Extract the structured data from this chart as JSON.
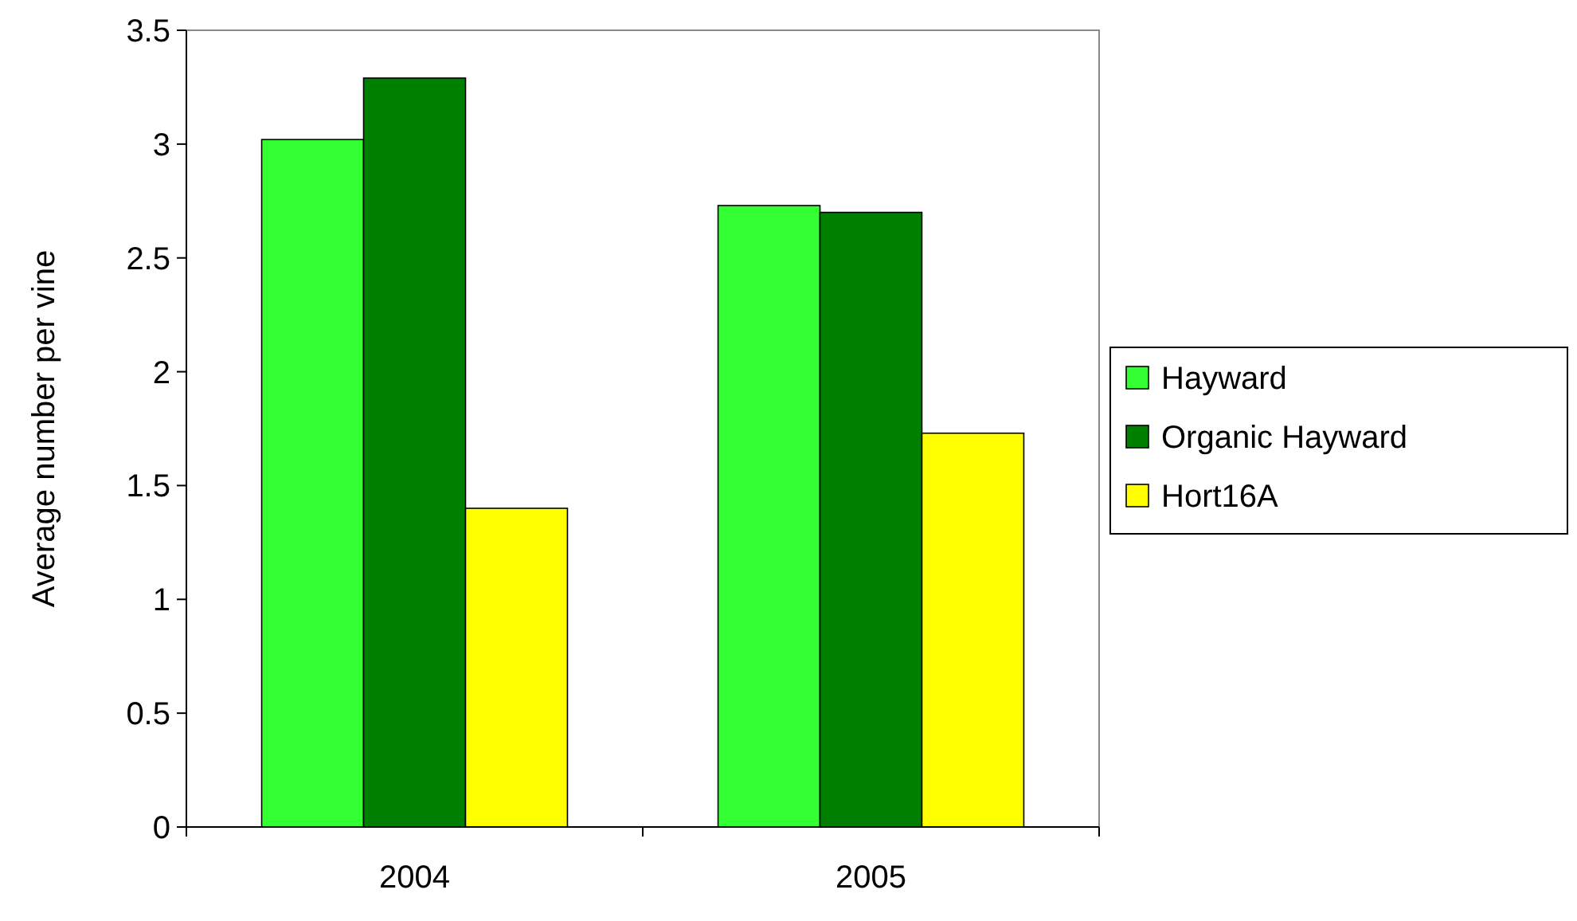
{
  "chart_data": {
    "type": "bar",
    "ylabel": "Average number per vine",
    "categories": [
      "2004",
      "2005"
    ],
    "series": [
      {
        "name": "Hayward",
        "color": "#33ff33",
        "values": [
          3.02,
          2.73
        ]
      },
      {
        "name": "Organic Hayward",
        "color": "#008000",
        "values": [
          3.29,
          2.7
        ]
      },
      {
        "name": "Hort16A",
        "color": "#ffff00",
        "values": [
          1.4,
          1.73
        ]
      }
    ],
    "ylim": [
      0,
      3.5
    ],
    "yticks": [
      0,
      {
        "value": 0.5,
        "label": "0.5"
      },
      1,
      {
        "value": 1.5,
        "label": "1.5"
      },
      2,
      {
        "value": 2.5,
        "label": "2.5"
      },
      3,
      {
        "value": 3.5,
        "label": "3.5"
      }
    ],
    "grid": false,
    "legend": "right"
  }
}
